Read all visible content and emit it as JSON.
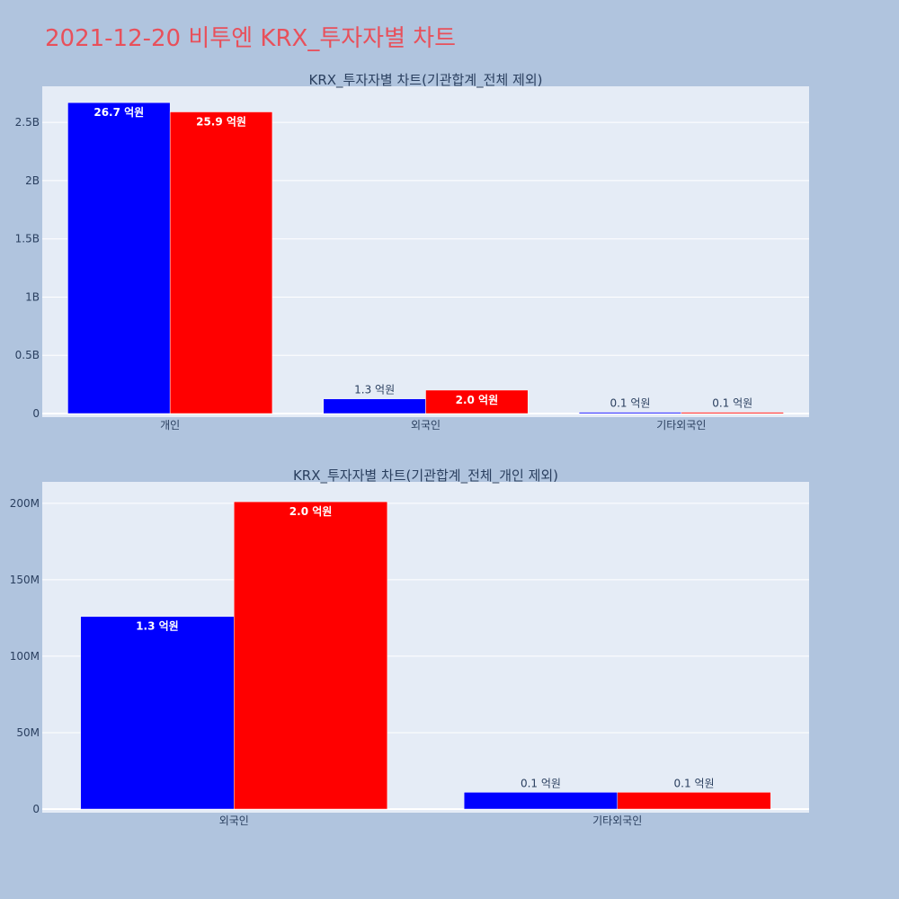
{
  "page_title": "2021-12-20 비투엔 KRX_투자자별 차트",
  "colors": {
    "background": "#b0c4de",
    "plot_bg": "#e5ecf6",
    "buy": "#0000ff",
    "sell": "#ff0000",
    "title": "#e8505b"
  },
  "chart_data": [
    {
      "type": "bar",
      "title": "KRX_투자자별 차트(기관합계_전체 제외)",
      "categories": [
        "개인",
        "외국인",
        "기타외국인"
      ],
      "series": [
        {
          "color": "#0000ff",
          "values": [
            2670000000,
            126000000,
            11000000
          ],
          "labels": [
            "26.7 억원",
            "1.3 억원",
            "0.1 억원"
          ]
        },
        {
          "color": "#ff0000",
          "values": [
            2590000000,
            201000000,
            11000000
          ],
          "labels": [
            "25.9 억원",
            "2.0 억원",
            "0.1 억원"
          ]
        }
      ],
      "yticks": [
        {
          "value": 0,
          "label": "0"
        },
        {
          "value": 500000000,
          "label": "0.5B"
        },
        {
          "value": 1000000000,
          "label": "1B"
        },
        {
          "value": 1500000000,
          "label": "1.5B"
        },
        {
          "value": 2000000000,
          "label": "2B"
        },
        {
          "value": 2500000000,
          "label": "2.5B"
        }
      ],
      "ylim": [
        0,
        2810000000
      ],
      "grid": true,
      "legend": "none"
    },
    {
      "type": "bar",
      "title": "KRX_투자자별 차트(기관합계_전체_개인 제외)",
      "categories": [
        "외국인",
        "기타외국인"
      ],
      "series": [
        {
          "color": "#0000ff",
          "values": [
            126000000,
            11000000
          ],
          "labels": [
            "1.3 억원",
            "0.1 억원"
          ]
        },
        {
          "color": "#ff0000",
          "values": [
            201000000,
            11000000
          ],
          "labels": [
            "2.0 억원",
            "0.1 억원"
          ]
        }
      ],
      "yticks": [
        {
          "value": 0,
          "label": "0"
        },
        {
          "value": 50000000,
          "label": "50M"
        },
        {
          "value": 100000000,
          "label": "100M"
        },
        {
          "value": 150000000,
          "label": "150M"
        },
        {
          "value": 200000000,
          "label": "200M"
        }
      ],
      "ylim": [
        0,
        214000000
      ],
      "grid": true,
      "legend": "none"
    }
  ]
}
